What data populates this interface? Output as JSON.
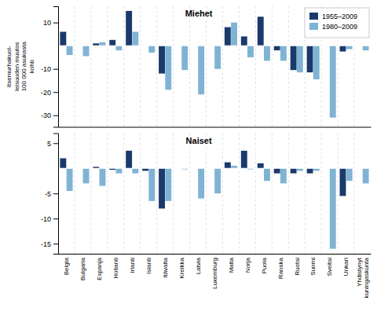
{
  "chart_data": [
    {
      "type": "bar",
      "title": "Miehet",
      "ylabel": "Itsemurhakuol-\nleisuuden muutos\n100 000 asukasta\nkohti",
      "categories": [
        "Belgia",
        "Bulgaria",
        "Espanja",
        "Hollanti",
        "Irlanti",
        "Islanti",
        "Itävalta",
        "Kreikka",
        "Latvia",
        "Luxemburg",
        "Malta",
        "Norja",
        "Puola",
        "Ranska",
        "Ruotsi",
        "Suomi",
        "Sveitsi",
        "Unkari",
        "Yhdistynyt\nkuningaskunta"
      ],
      "series": [
        {
          "name": "1955–2009",
          "color": "#1a3a6b",
          "values": [
            6.0,
            null,
            1.0,
            2.5,
            15.0,
            null,
            -12.0,
            null,
            null,
            null,
            8.0,
            4.0,
            12.5,
            -2.0,
            -10.5,
            -11.5,
            null,
            -2.5,
            null
          ]
        },
        {
          "name": "1980–2009",
          "color": "#7fb3d3",
          "values": [
            -4.0,
            -4.5,
            1.5,
            -2.0,
            6.0,
            -3.0,
            -19.0,
            -10.5,
            -21.0,
            -10.0,
            10.0,
            -5.0,
            -6.5,
            -6.5,
            -11.5,
            -14.5,
            -31.0,
            -1.5,
            -2.0
          ]
        }
      ],
      "ylim": [
        -35,
        17
      ],
      "yticks": [
        -30,
        -20,
        -10,
        10
      ],
      "legend": "upper right",
      "tick_labels": "y"
    },
    {
      "type": "bar",
      "title": "Naiset",
      "categories": [
        "Belgia",
        "Bulgaria",
        "Espanja",
        "Hollanti",
        "Irlanti",
        "Islanti",
        "Itävalta",
        "Kreikka",
        "Latvia",
        "Luxemburg",
        "Malta",
        "Norja",
        "Puola",
        "Ranska",
        "Ruotsi",
        "Suomi",
        "Sveitsi",
        "Unkari",
        "Yhdistynyt\nkuningaskunta"
      ],
      "series": [
        {
          "name": "1955–2009",
          "color": "#1a3a6b",
          "values": [
            2.0,
            null,
            0.3,
            -0.3,
            3.5,
            -0.5,
            -8.0,
            null,
            null,
            null,
            1.2,
            3.5,
            1.0,
            -1.0,
            -1.0,
            -1.0,
            null,
            -5.5,
            null
          ]
        },
        {
          "name": "1980–2009",
          "color": "#7fb3d3",
          "values": [
            -4.5,
            -3.0,
            -3.5,
            -1.0,
            -1.0,
            -6.5,
            -6.5,
            -0.2,
            -6.0,
            -5.0,
            0.5,
            -0.2,
            -2.5,
            -3.0,
            -0.5,
            -0.5,
            -16.0,
            -2.5,
            -3.0
          ]
        }
      ],
      "ylim": [
        -17,
        7
      ],
      "yticks": [
        -15,
        -10,
        -5,
        5
      ]
    }
  ]
}
